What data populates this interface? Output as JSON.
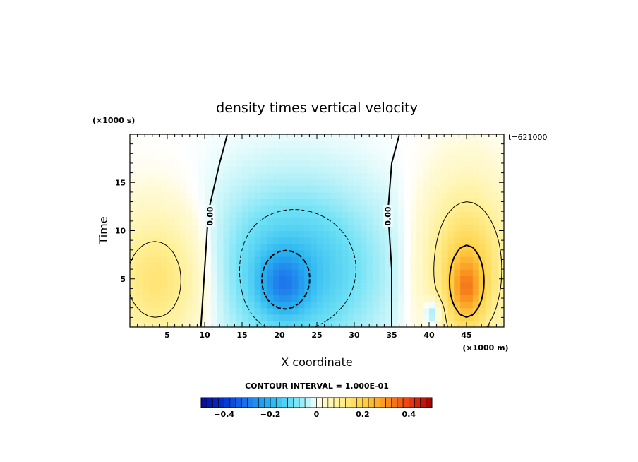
{
  "chart_data": {
    "type": "heatmap",
    "title": "density times vertical velocity",
    "xlabel": "X coordinate",
    "ylabel": "Time",
    "x_unit": "(×1000 m)",
    "y_unit": "(×1000 s)",
    "time_stamp": "t=621000",
    "xlim": [
      0,
      50
    ],
    "ylim": [
      0,
      20
    ],
    "x_ticks": [
      5,
      10,
      15,
      20,
      25,
      30,
      35,
      40,
      45
    ],
    "y_ticks": [
      5,
      10,
      15
    ],
    "x_tick_labels": [
      "5",
      "10",
      "15",
      "20",
      "25",
      "30",
      "35",
      "40",
      "45"
    ],
    "y_tick_labels": [
      "5",
      "10",
      "15"
    ],
    "zero_contour_label": "0.00",
    "contour_interval_text": "CONTOUR INTERVAL = 1.000E-01",
    "colorbar": {
      "min": -0.5,
      "max": 0.5,
      "n_bins": 40,
      "tick_values": [
        -0.4,
        -0.2,
        0,
        0.2,
        0.4
      ],
      "tick_labels": [
        "−0.4",
        "−0.2",
        "0",
        "0.2",
        "0.4"
      ],
      "colormap": "blue-cyan-white-yellow-orange-red"
    },
    "field_features": [
      {
        "name": "left-positive-lobe",
        "x": 4,
        "y": 5,
        "sx": 5,
        "sy": 5,
        "amp": 0.15
      },
      {
        "name": "central-negative-cell",
        "x": 22,
        "y": 6,
        "sx": 8,
        "sy": 6,
        "amp": -0.17
      },
      {
        "name": "central-negative-core",
        "x": 20.5,
        "y": 4.5,
        "sx": 2.2,
        "sy": 2.2,
        "amp": -0.14
      },
      {
        "name": "right-positive-lobe",
        "x": 45,
        "y": 6,
        "sx": 4,
        "sy": 6,
        "amp": 0.2
      },
      {
        "name": "right-positive-core",
        "x": 45,
        "y": 4,
        "sx": 1.4,
        "sy": 2.2,
        "amp": 0.15
      },
      {
        "name": "small-negative-spot",
        "x": 40.5,
        "y": 1.5,
        "sx": 0.8,
        "sy": 1.0,
        "amp": -0.12
      }
    ]
  }
}
